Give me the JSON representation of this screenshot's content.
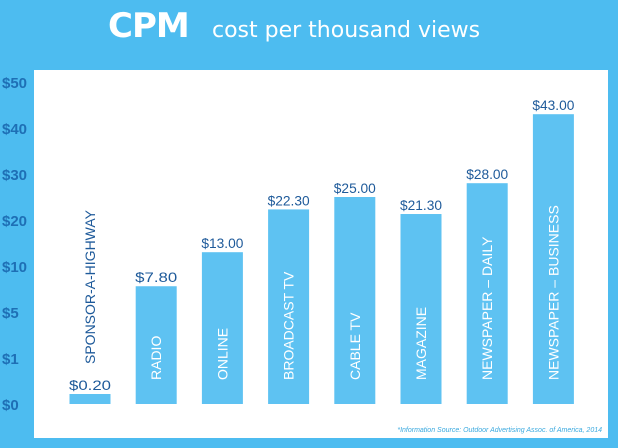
{
  "title": {
    "main": "CPM",
    "sub": "cost per thousand views"
  },
  "source_note": "*Information Source: Outdoor Advertising Assoc. of America, 2014",
  "colors": {
    "background": "#4dbcf0",
    "panel": "#ffffff",
    "bar": "#5ec2f2",
    "axis_text": "#1e6fb5",
    "bar_value_text": "#1e5a9a"
  },
  "chart_data": {
    "type": "bar",
    "categories": [
      "SPONSOR-A-HIGHWAY",
      "RADIO",
      "ONLINE",
      "BROADCAST TV",
      "CABLE TV",
      "MAGAZINE",
      "NEWSPAPER – DAILY",
      "NEWSPAPER – BUSINESS"
    ],
    "values": [
      0.2,
      7.8,
      13.0,
      22.3,
      25.0,
      21.3,
      28.0,
      43.0
    ],
    "value_labels": [
      "$0.20",
      "$7.80",
      "$13.00",
      "$22.30",
      "$25.00",
      "$21.30",
      "$28.00",
      "$43.00"
    ],
    "y_ticks": [
      0,
      1,
      5,
      10,
      20,
      30,
      40,
      50
    ],
    "y_tick_labels": [
      "$0",
      "$1",
      "$5",
      "$10",
      "$20",
      "$30",
      "$40",
      "$50"
    ],
    "y_scale": "nonlinear (ticks evenly spaced)",
    "ylim": [
      0,
      50
    ],
    "grid": false,
    "legend": "none"
  }
}
